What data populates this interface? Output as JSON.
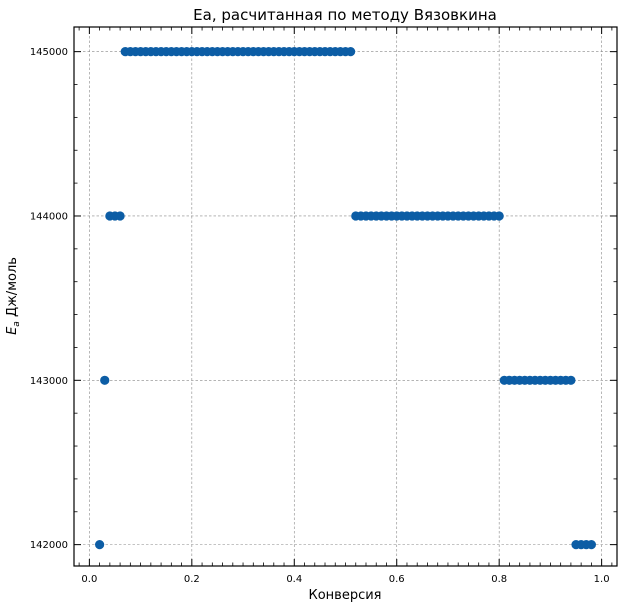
{
  "chart_data": {
    "type": "scatter",
    "title": "Ea, расчитанная по методу Вязовкина",
    "xlabel": "Конверсия",
    "ylabel_symbol": "E",
    "ylabel_subscript": "a",
    "ylabel_unit": " Дж/моль",
    "xlim": [
      -0.03,
      1.03
    ],
    "ylim": [
      141870,
      145150
    ],
    "x_ticks": [
      0.0,
      0.2,
      0.4,
      0.6,
      0.8,
      1.0
    ],
    "x_tick_labels": [
      "0.0",
      "0.2",
      "0.4",
      "0.6",
      "0.8",
      "1.0"
    ],
    "y_ticks": [
      142000,
      143000,
      144000,
      145000
    ],
    "y_tick_labels": [
      "142000",
      "143000",
      "144000",
      "145000"
    ],
    "grid": true,
    "marker_color": "#0c5da5",
    "series": [
      {
        "x": [
          0.02,
          0.03,
          0.04,
          0.05,
          0.06,
          0.07,
          0.08,
          0.09,
          0.1,
          0.11,
          0.12,
          0.13,
          0.14,
          0.15,
          0.16,
          0.17,
          0.18,
          0.19,
          0.2,
          0.21,
          0.22,
          0.23,
          0.24,
          0.25,
          0.26,
          0.27,
          0.28,
          0.29,
          0.3,
          0.31,
          0.32,
          0.33,
          0.34,
          0.35,
          0.36,
          0.37,
          0.38,
          0.39,
          0.4,
          0.41,
          0.42,
          0.43,
          0.44,
          0.45,
          0.46,
          0.47,
          0.48,
          0.49,
          0.5,
          0.51,
          0.52,
          0.53,
          0.54,
          0.55,
          0.56,
          0.57,
          0.58,
          0.59,
          0.6,
          0.61,
          0.62,
          0.63,
          0.64,
          0.65,
          0.66,
          0.67,
          0.68,
          0.69,
          0.7,
          0.71,
          0.72,
          0.73,
          0.74,
          0.75,
          0.76,
          0.77,
          0.78,
          0.79,
          0.8,
          0.81,
          0.82,
          0.83,
          0.84,
          0.85,
          0.86,
          0.87,
          0.88,
          0.89,
          0.9,
          0.91,
          0.92,
          0.93,
          0.94,
          0.95,
          0.96,
          0.97,
          0.98
        ],
        "y": [
          142000,
          143000,
          144000,
          144000,
          144000,
          145000,
          145000,
          145000,
          145000,
          145000,
          145000,
          145000,
          145000,
          145000,
          145000,
          145000,
          145000,
          145000,
          145000,
          145000,
          145000,
          145000,
          145000,
          145000,
          145000,
          145000,
          145000,
          145000,
          145000,
          145000,
          145000,
          145000,
          145000,
          145000,
          145000,
          145000,
          145000,
          145000,
          145000,
          145000,
          145000,
          145000,
          145000,
          145000,
          145000,
          145000,
          145000,
          145000,
          145000,
          145000,
          144000,
          144000,
          144000,
          144000,
          144000,
          144000,
          144000,
          144000,
          144000,
          144000,
          144000,
          144000,
          144000,
          144000,
          144000,
          144000,
          144000,
          144000,
          144000,
          144000,
          144000,
          144000,
          144000,
          144000,
          144000,
          144000,
          144000,
          144000,
          144000,
          143000,
          143000,
          143000,
          143000,
          143000,
          143000,
          143000,
          143000,
          143000,
          143000,
          143000,
          143000,
          143000,
          143000,
          142000,
          142000,
          142000,
          142000
        ]
      }
    ]
  }
}
